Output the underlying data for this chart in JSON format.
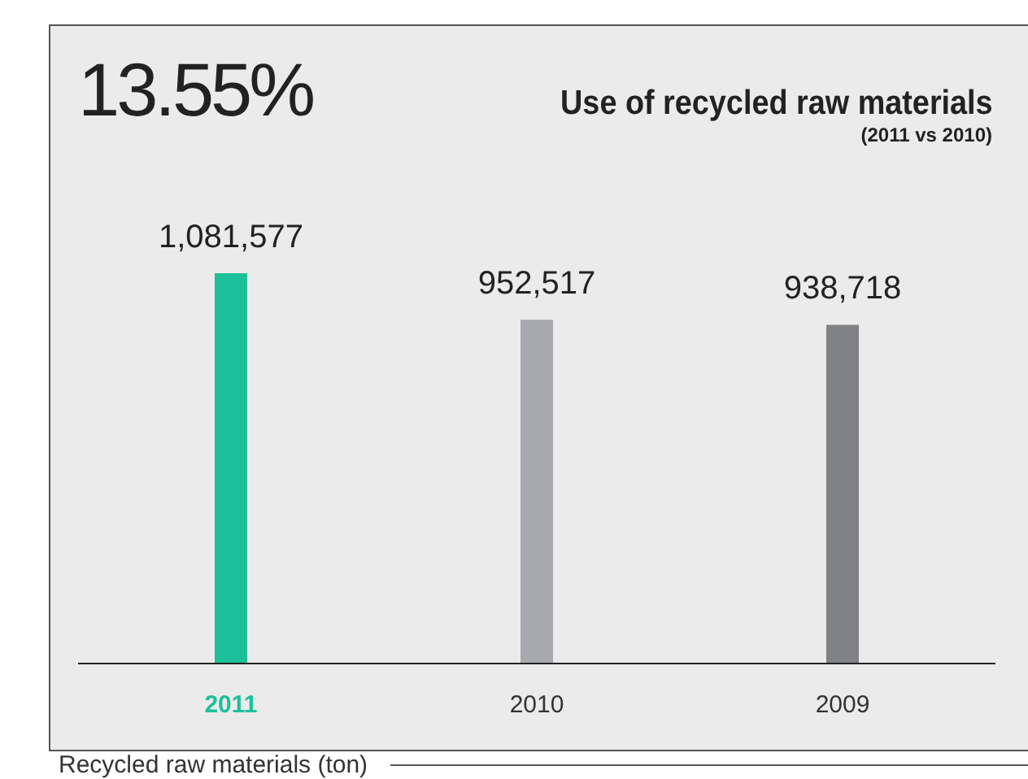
{
  "chart_data": {
    "type": "bar",
    "title": "Use of recycled raw materials",
    "subtitle": "(2011 vs 2010)",
    "annotations": [
      "13.55%",
      "Recycled raw materials (ton)"
    ],
    "categories": [
      "2011",
      "2010",
      "2009"
    ],
    "values": [
      1081577,
      952517,
      938718
    ],
    "colors": [
      "#1dbf9a",
      "#a7a9ac",
      "#808285"
    ],
    "value_labels": [
      "1,081,577",
      "952,517",
      "938,718"
    ]
  }
}
